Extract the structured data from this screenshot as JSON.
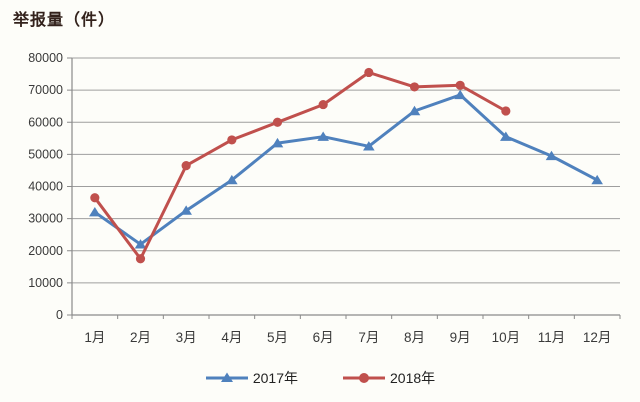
{
  "chart_data": {
    "type": "line",
    "title": "举报量（件）",
    "categories": [
      "1月",
      "2月",
      "3月",
      "4月",
      "5月",
      "6月",
      "7月",
      "8月",
      "9月",
      "10月",
      "11月",
      "12月"
    ],
    "series": [
      {
        "name": "2017年",
        "color": "#4F81BD",
        "marker": "triangle",
        "values": [
          32000,
          22000,
          32500,
          42000,
          53500,
          55500,
          52500,
          63500,
          68500,
          55500,
          49500,
          42000
        ]
      },
      {
        "name": "2018年",
        "color": "#C0504D",
        "marker": "circle",
        "values": [
          36500,
          17500,
          46500,
          54500,
          60000,
          65500,
          75500,
          71000,
          71500,
          63500
        ]
      }
    ],
    "ylim": [
      0,
      80000
    ],
    "ytick_step": 10000,
    "ytick_labels": [
      "0",
      "10000",
      "20000",
      "30000",
      "40000",
      "50000",
      "60000",
      "70000",
      "80000"
    ],
    "grid": true,
    "legend_position": "bottom",
    "colors": {
      "gridline": "#9e9e9e",
      "axis": "#8a8a8a",
      "tick_label": "#3a3a3a",
      "title": "#33221c"
    }
  }
}
